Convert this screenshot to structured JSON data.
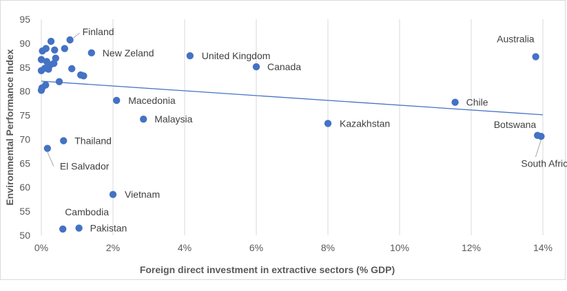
{
  "chart_data": {
    "type": "scatter",
    "title": "",
    "xlabel": "Foreign direct investment in extractive sectors (% GDP)",
    "ylabel": "Environmental Performance Index",
    "xlim": [
      0,
      14
    ],
    "ylim": [
      50,
      95
    ],
    "x_ticks": [
      0,
      2,
      4,
      6,
      8,
      10,
      12,
      14
    ],
    "x_tick_labels": [
      "0%",
      "2%",
      "4%",
      "6%",
      "8%",
      "10%",
      "12%",
      "14%"
    ],
    "y_ticks": [
      50,
      55,
      60,
      65,
      70,
      75,
      80,
      85,
      90,
      95
    ],
    "y_tick_labels": [
      "50",
      "55",
      "60",
      "65",
      "70",
      "75",
      "80",
      "85",
      "90",
      "95"
    ],
    "grid": "vertical",
    "marker_color": "#4472c4",
    "trendline": {
      "x": [
        0,
        14
      ],
      "y": [
        82.1,
        75.1
      ],
      "color": "#4472c4"
    },
    "labeled_points": [
      {
        "label": "Finland",
        "x": 0.8,
        "y": 90.7
      },
      {
        "label": "New Zeland",
        "x": 1.4,
        "y": 88.0
      },
      {
        "label": "United Kingdom",
        "x": 4.15,
        "y": 87.4
      },
      {
        "label": "Canada",
        "x": 6.0,
        "y": 85.1
      },
      {
        "label": "Australia",
        "x": 13.8,
        "y": 87.2
      },
      {
        "label": "Macedonia",
        "x": 2.1,
        "y": 78.1
      },
      {
        "label": "Malaysia",
        "x": 2.85,
        "y": 74.2
      },
      {
        "label": "Chile",
        "x": 11.55,
        "y": 77.7
      },
      {
        "label": "Kazakhstan",
        "x": 8.0,
        "y": 73.3
      },
      {
        "label": "Botswana",
        "x": 13.85,
        "y": 70.8
      },
      {
        "label": "South Africa",
        "x": 13.95,
        "y": 70.6
      },
      {
        "label": "Thailand",
        "x": 0.62,
        "y": 69.7
      },
      {
        "label": "El Salvador",
        "x": 0.17,
        "y": 68.1
      },
      {
        "label": "Vietnam",
        "x": 2.0,
        "y": 58.5
      },
      {
        "label": "Cambodia",
        "x": 0.6,
        "y": 51.3
      },
      {
        "label": "Pakistan",
        "x": 1.05,
        "y": 51.5
      }
    ],
    "unlabeled_points": [
      {
        "x": 0.0,
        "y": 80.2
      },
      {
        "x": 0.02,
        "y": 80.7
      },
      {
        "x": 0.12,
        "y": 81.3
      },
      {
        "x": 0.5,
        "y": 82.0
      },
      {
        "x": 0.0,
        "y": 84.3
      },
      {
        "x": 0.1,
        "y": 84.8
      },
      {
        "x": 0.2,
        "y": 84.6
      },
      {
        "x": 0.25,
        "y": 85.5
      },
      {
        "x": 0.35,
        "y": 85.8
      },
      {
        "x": 0.15,
        "y": 86.2
      },
      {
        "x": 0.0,
        "y": 86.6
      },
      {
        "x": 0.4,
        "y": 86.9
      },
      {
        "x": 0.85,
        "y": 84.7
      },
      {
        "x": 1.1,
        "y": 83.4
      },
      {
        "x": 1.18,
        "y": 83.2
      },
      {
        "x": 0.03,
        "y": 88.4
      },
      {
        "x": 0.13,
        "y": 88.9
      },
      {
        "x": 0.37,
        "y": 88.6
      },
      {
        "x": 0.65,
        "y": 88.9
      },
      {
        "x": 0.27,
        "y": 90.4
      }
    ]
  }
}
